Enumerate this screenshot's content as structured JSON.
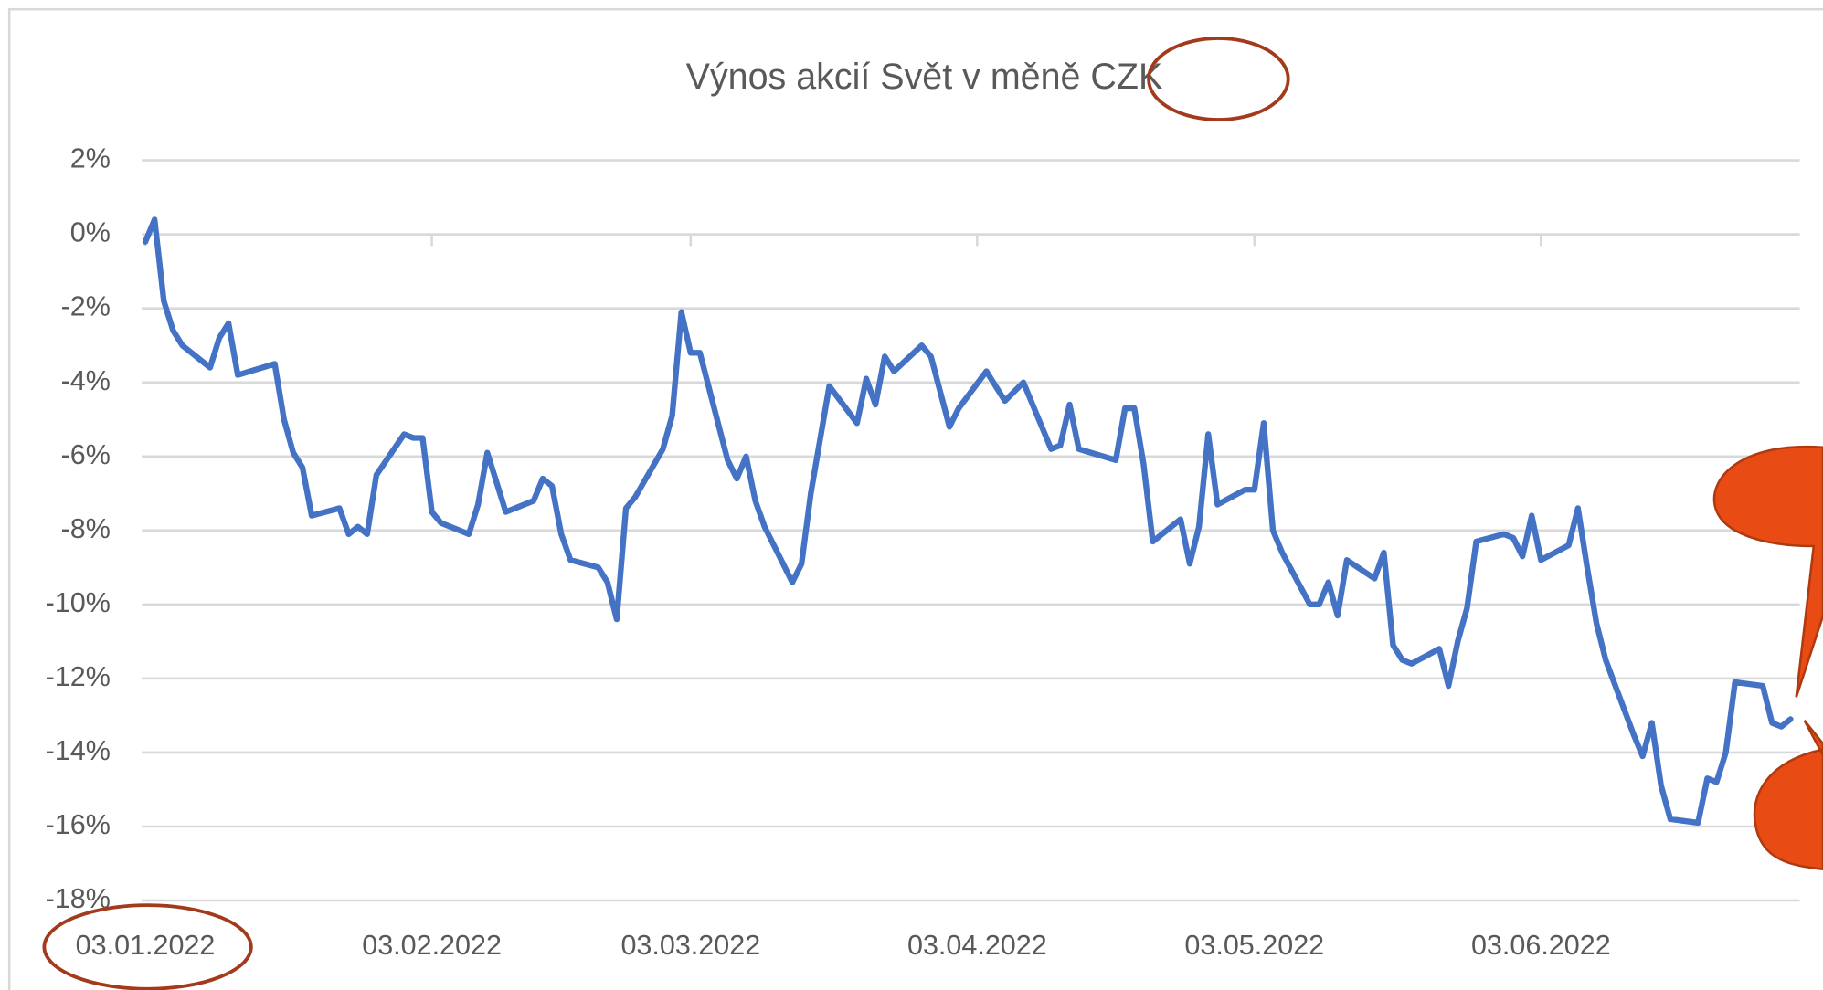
{
  "chart_data": {
    "type": "line",
    "title": "Výnos akcií Svět v měně CZK",
    "x": [
      "03.01.2022",
      "04.01.2022",
      "05.01.2022",
      "06.01.2022",
      "07.01.2022",
      "10.01.2022",
      "11.01.2022",
      "12.01.2022",
      "13.01.2022",
      "17.01.2022",
      "18.01.2022",
      "19.01.2022",
      "20.01.2022",
      "21.01.2022",
      "24.01.2022",
      "25.01.2022",
      "26.01.2022",
      "27.01.2022",
      "28.01.2022",
      "31.01.2022",
      "01.02.2022",
      "02.02.2022",
      "03.02.2022",
      "04.02.2022",
      "07.02.2022",
      "08.02.2022",
      "09.02.2022",
      "11.02.2022",
      "14.02.2022",
      "15.02.2022",
      "16.02.2022",
      "17.02.2022",
      "18.02.2022",
      "21.02.2022",
      "22.02.2022",
      "23.02.2022",
      "24.02.2022",
      "25.02.2022",
      "28.02.2022",
      "01.03.2022",
      "02.03.2022",
      "03.03.2022",
      "04.03.2022",
      "07.03.2022",
      "08.03.2022",
      "09.03.2022",
      "10.03.2022",
      "11.03.2022",
      "14.03.2022",
      "15.03.2022",
      "16.03.2022",
      "18.03.2022",
      "21.03.2022",
      "22.03.2022",
      "23.03.2022",
      "24.03.2022",
      "25.03.2022",
      "28.03.2022",
      "29.03.2022",
      "31.03.2022",
      "01.04.2022",
      "04.04.2022",
      "05.04.2022",
      "06.04.2022",
      "08.04.2022",
      "11.04.2022",
      "12.04.2022",
      "13.04.2022",
      "14.04.2022",
      "18.04.2022",
      "19.04.2022",
      "20.04.2022",
      "21.04.2022",
      "22.04.2022",
      "25.04.2022",
      "26.04.2022",
      "27.04.2022",
      "28.04.2022",
      "29.04.2022",
      "02.05.2022",
      "03.05.2022",
      "04.05.2022",
      "05.05.2022",
      "06.05.2022",
      "09.05.2022",
      "10.05.2022",
      "11.05.2022",
      "12.05.2022",
      "13.05.2022",
      "16.05.2022",
      "17.05.2022",
      "18.05.2022",
      "19.05.2022",
      "20.05.2022",
      "23.05.2022",
      "24.05.2022",
      "25.05.2022",
      "26.05.2022",
      "27.05.2022",
      "30.05.2022",
      "31.05.2022",
      "01.06.2022",
      "02.06.2022",
      "03.06.2022",
      "06.06.2022",
      "07.06.2022",
      "08.06.2022",
      "09.06.2022",
      "10.06.2022",
      "13.06.2022",
      "14.06.2022",
      "15.06.2022",
      "16.06.2022",
      "17.06.2022",
      "20.06.2022",
      "21.06.2022",
      "22.06.2022",
      "23.06.2022",
      "24.06.2022",
      "27.06.2022",
      "28.06.2022",
      "29.06.2022",
      "30.06.2022"
    ],
    "series": [
      {
        "name": "Výnos akcií Svět",
        "color": "#4472c4",
        "values": [
          -0.2,
          0.4,
          -1.8,
          -2.6,
          -3.0,
          -3.6,
          -2.8,
          -2.4,
          -3.8,
          -3.5,
          -5.0,
          -5.9,
          -6.3,
          -7.6,
          -7.4,
          -8.1,
          -7.9,
          -8.1,
          -6.5,
          -5.4,
          -5.5,
          -5.5,
          -7.5,
          -7.8,
          -8.1,
          -7.3,
          -5.9,
          -7.5,
          -7.2,
          -6.6,
          -6.8,
          -8.1,
          -8.8,
          -9.0,
          -9.4,
          -10.4,
          -7.4,
          -7.1,
          -5.8,
          -4.9,
          -2.1,
          -3.2,
          -3.2,
          -6.1,
          -6.6,
          -6.0,
          -7.2,
          -7.9,
          -9.4,
          -8.9,
          -7.0,
          -4.1,
          -5.1,
          -3.9,
          -4.6,
          -3.3,
          -3.7,
          -3.0,
          -3.3,
          -5.2,
          -4.7,
          -3.7,
          -4.1,
          -4.5,
          -4.0,
          -5.8,
          -5.7,
          -4.6,
          -5.8,
          -6.1,
          -4.7,
          -4.7,
          -6.2,
          -8.3,
          -7.7,
          -8.9,
          -7.9,
          -5.4,
          -7.3,
          -6.9,
          -6.9,
          -5.1,
          -8.0,
          -8.6,
          -10.0,
          -10.0,
          -9.4,
          -10.3,
          -8.8,
          -9.3,
          -8.6,
          -11.1,
          -11.5,
          -11.6,
          -11.2,
          -12.2,
          -11.0,
          -10.1,
          -8.3,
          -8.1,
          -8.2,
          -8.7,
          -7.6,
          -8.8,
          -8.4,
          -7.4,
          -9.0,
          -10.5,
          -11.5,
          -13.5,
          -14.1,
          -13.2,
          -14.9,
          -15.8,
          -15.9,
          -14.7,
          -14.8,
          -14.0,
          -12.1,
          -12.2,
          -13.2,
          -13.3,
          -13.1
        ]
      }
    ],
    "xlim": [
      "03.01.2022",
      "01.07.2022"
    ],
    "xticks": [
      "03.01.2022",
      "03.02.2022",
      "03.03.2022",
      "03.04.2022",
      "03.05.2022",
      "03.06.2022"
    ],
    "ylim": [
      -18,
      2
    ],
    "yticks": [
      {
        "value": 2,
        "label": "2%"
      },
      {
        "value": 0,
        "label": "0%"
      },
      {
        "value": -2,
        "label": "-2%"
      },
      {
        "value": -4,
        "label": "-4%"
      },
      {
        "value": -6,
        "label": "-6%"
      },
      {
        "value": -8,
        "label": "-8%"
      },
      {
        "value": -10,
        "label": "-10%"
      },
      {
        "value": -12,
        "label": "-12%"
      },
      {
        "value": -14,
        "label": "-14%"
      },
      {
        "value": -16,
        "label": "-16%"
      },
      {
        "value": -18,
        "label": "-18%"
      }
    ],
    "grid": true
  }
}
